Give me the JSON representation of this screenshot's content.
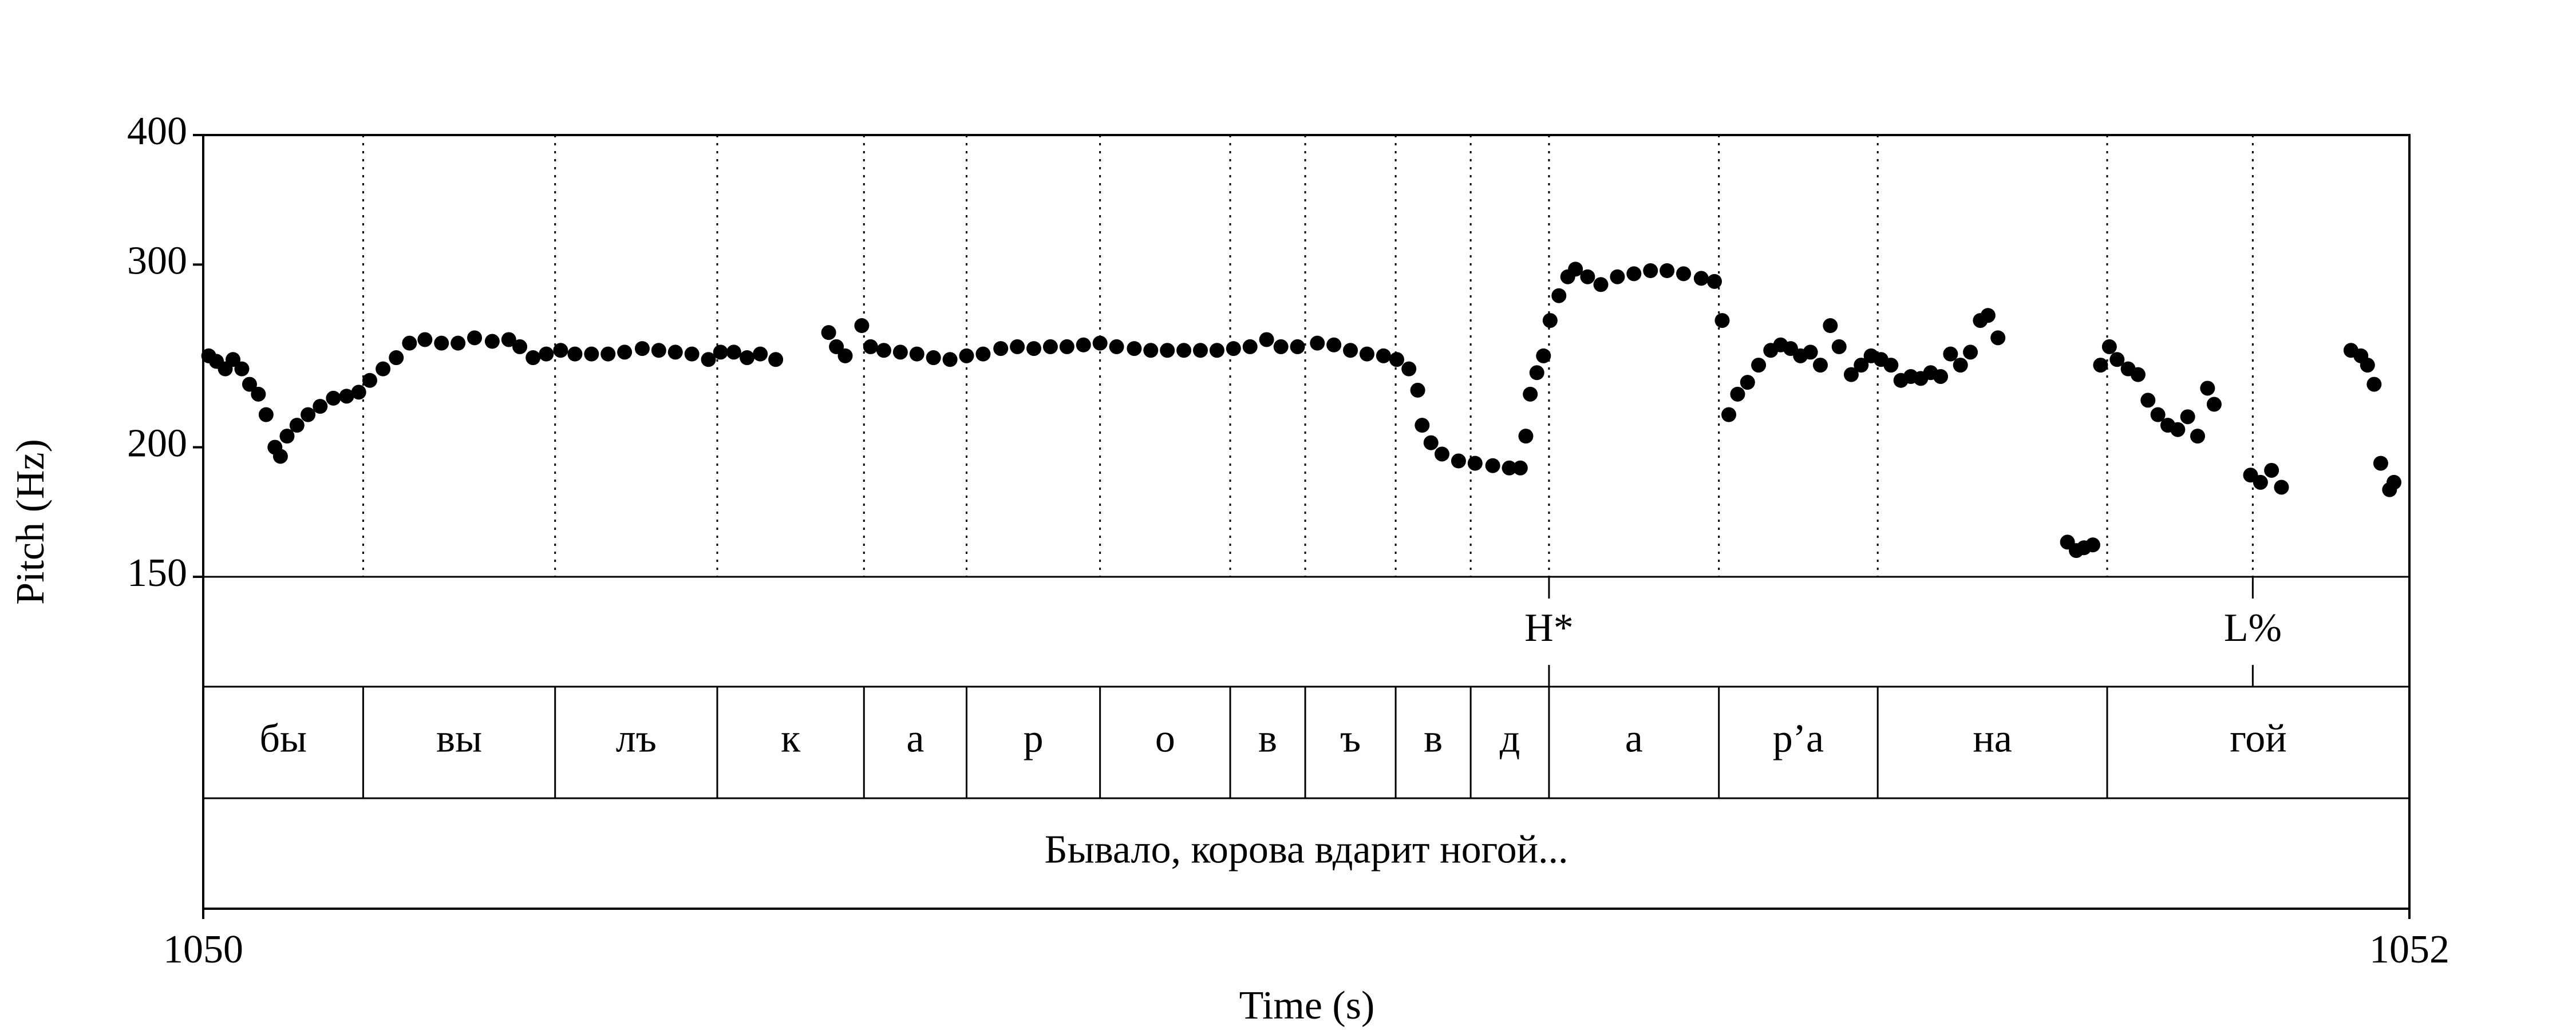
{
  "chart_data": {
    "type": "scatter",
    "xlabel": "Time (s)",
    "ylabel": "Pitch (Hz)",
    "xlim": [
      1050,
      1052
    ],
    "xticks": [
      1050,
      1052
    ],
    "ylim": [
      150,
      400
    ],
    "yticks": [
      150,
      200,
      300,
      400
    ],
    "yscale": "log",
    "color": "#000000",
    "x": [
      1050.005,
      1050.012,
      1050.02,
      1050.027,
      1050.035,
      1050.042,
      1050.05,
      1050.057,
      1050.065,
      1050.07,
      1050.076,
      1050.085,
      1050.095,
      1050.106,
      1050.118,
      1050.13,
      1050.141,
      1050.151,
      1050.163,
      1050.175,
      1050.187,
      1050.201,
      1050.216,
      1050.231,
      1050.246,
      1050.262,
      1050.277,
      1050.287,
      1050.299,
      1050.311,
      1050.324,
      1050.337,
      1050.352,
      1050.367,
      1050.382,
      1050.398,
      1050.413,
      1050.428,
      1050.443,
      1050.458,
      1050.469,
      1050.481,
      1050.493,
      1050.505,
      1050.519,
      1050.567,
      1050.574,
      1050.582,
      1050.597,
      1050.605,
      1050.617,
      1050.632,
      1050.647,
      1050.662,
      1050.677,
      1050.692,
      1050.707,
      1050.723,
      1050.738,
      1050.753,
      1050.768,
      1050.783,
      1050.798,
      1050.813,
      1050.828,
      1050.844,
      1050.859,
      1050.874,
      1050.889,
      1050.904,
      1050.919,
      1050.934,
      1050.949,
      1050.964,
      1050.977,
      1050.992,
      1051.01,
      1051.025,
      1051.04,
      1051.055,
      1051.07,
      1051.082,
      1051.093,
      1051.101,
      1051.105,
      1051.113,
      1051.123,
      1051.138,
      1051.153,
      1051.169,
      1051.184,
      1051.194,
      1051.199,
      1051.203,
      1051.209,
      1051.215,
      1051.221,
      1051.229,
      1051.237,
      1051.244,
      1051.255,
      1051.267,
      1051.282,
      1051.297,
      1051.312,
      1051.327,
      1051.342,
      1051.358,
      1051.37,
      1051.377,
      1051.383,
      1051.391,
      1051.4,
      1051.41,
      1051.421,
      1051.43,
      1051.439,
      1051.448,
      1051.457,
      1051.466,
      1051.475,
      1051.483,
      1051.494,
      1051.503,
      1051.512,
      1051.521,
      1051.53,
      1051.539,
      1051.548,
      1051.557,
      1051.566,
      1051.575,
      1051.584,
      1051.593,
      1051.602,
      1051.611,
      1051.618,
      1051.627,
      1051.69,
      1051.698,
      1051.705,
      1051.713,
      1051.72,
      1051.728,
      1051.735,
      1051.745,
      1051.754,
      1051.763,
      1051.772,
      1051.781,
      1051.79,
      1051.799,
      1051.808,
      1051.817,
      1051.823,
      1051.856,
      1051.865,
      1051.875,
      1051.884,
      1051.947,
      1051.956,
      1051.962,
      1051.968,
      1051.974,
      1051.982,
      1051.986
    ],
    "values": [
      245,
      242,
      238,
      243,
      238,
      230,
      225,
      215,
      200,
      196,
      205,
      210,
      215,
      219,
      223,
      224,
      226,
      232,
      238,
      244,
      252,
      254,
      252,
      252,
      255,
      253,
      254,
      250,
      244,
      246,
      248,
      246,
      246,
      246,
      247,
      249,
      248,
      247,
      246,
      243,
      247,
      247,
      244,
      246,
      243,
      258,
      250,
      245,
      262,
      250,
      248,
      247,
      246,
      244,
      243,
      245,
      246,
      249,
      250,
      249,
      250,
      250,
      251,
      252,
      250,
      249,
      248,
      248,
      248,
      248,
      248,
      249,
      250,
      254,
      250,
      250,
      252,
      251,
      248,
      246,
      245,
      243,
      238,
      227,
      210,
      202,
      197,
      194,
      193,
      192,
      191,
      191,
      205,
      225,
      236,
      245,
      265,
      280,
      292,
      297,
      292,
      287,
      292,
      294,
      296,
      296,
      294,
      291,
      289,
      265,
      215,
      225,
      231,
      240,
      248,
      251,
      249,
      245,
      247,
      240,
      262,
      250,
      235,
      240,
      245,
      243,
      240,
      232,
      234,
      233,
      236,
      234,
      246,
      240,
      247,
      265,
      268,
      255,
      162,
      159,
      160,
      161,
      240,
      250,
      243,
      238,
      235,
      222,
      215,
      210,
      208,
      214,
      205,
      228,
      220,
      188,
      185,
      190,
      183,
      248,
      245,
      240,
      230,
      193,
      182,
      185
    ],
    "tone_tier": {
      "times": [
        1051.22,
        1051.858
      ],
      "labels": [
        "H*",
        "L%"
      ]
    },
    "syllable_tier": {
      "boundaries": [
        1050.145,
        1050.319,
        1050.466,
        1050.599,
        1050.692,
        1050.813,
        1050.931,
        1050.999,
        1051.081,
        1051.149,
        1051.22,
        1051.374,
        1051.518,
        1051.726
      ],
      "labels": [
        "бы",
        "вы",
        "лъ",
        "к",
        "а",
        "р",
        "о",
        "в",
        "ъ",
        "в",
        "д",
        "а",
        "р’а",
        "на",
        "гой"
      ]
    },
    "phrase_tier": {
      "labels": [
        "Бывало, корова вдарит ногой..."
      ]
    }
  }
}
